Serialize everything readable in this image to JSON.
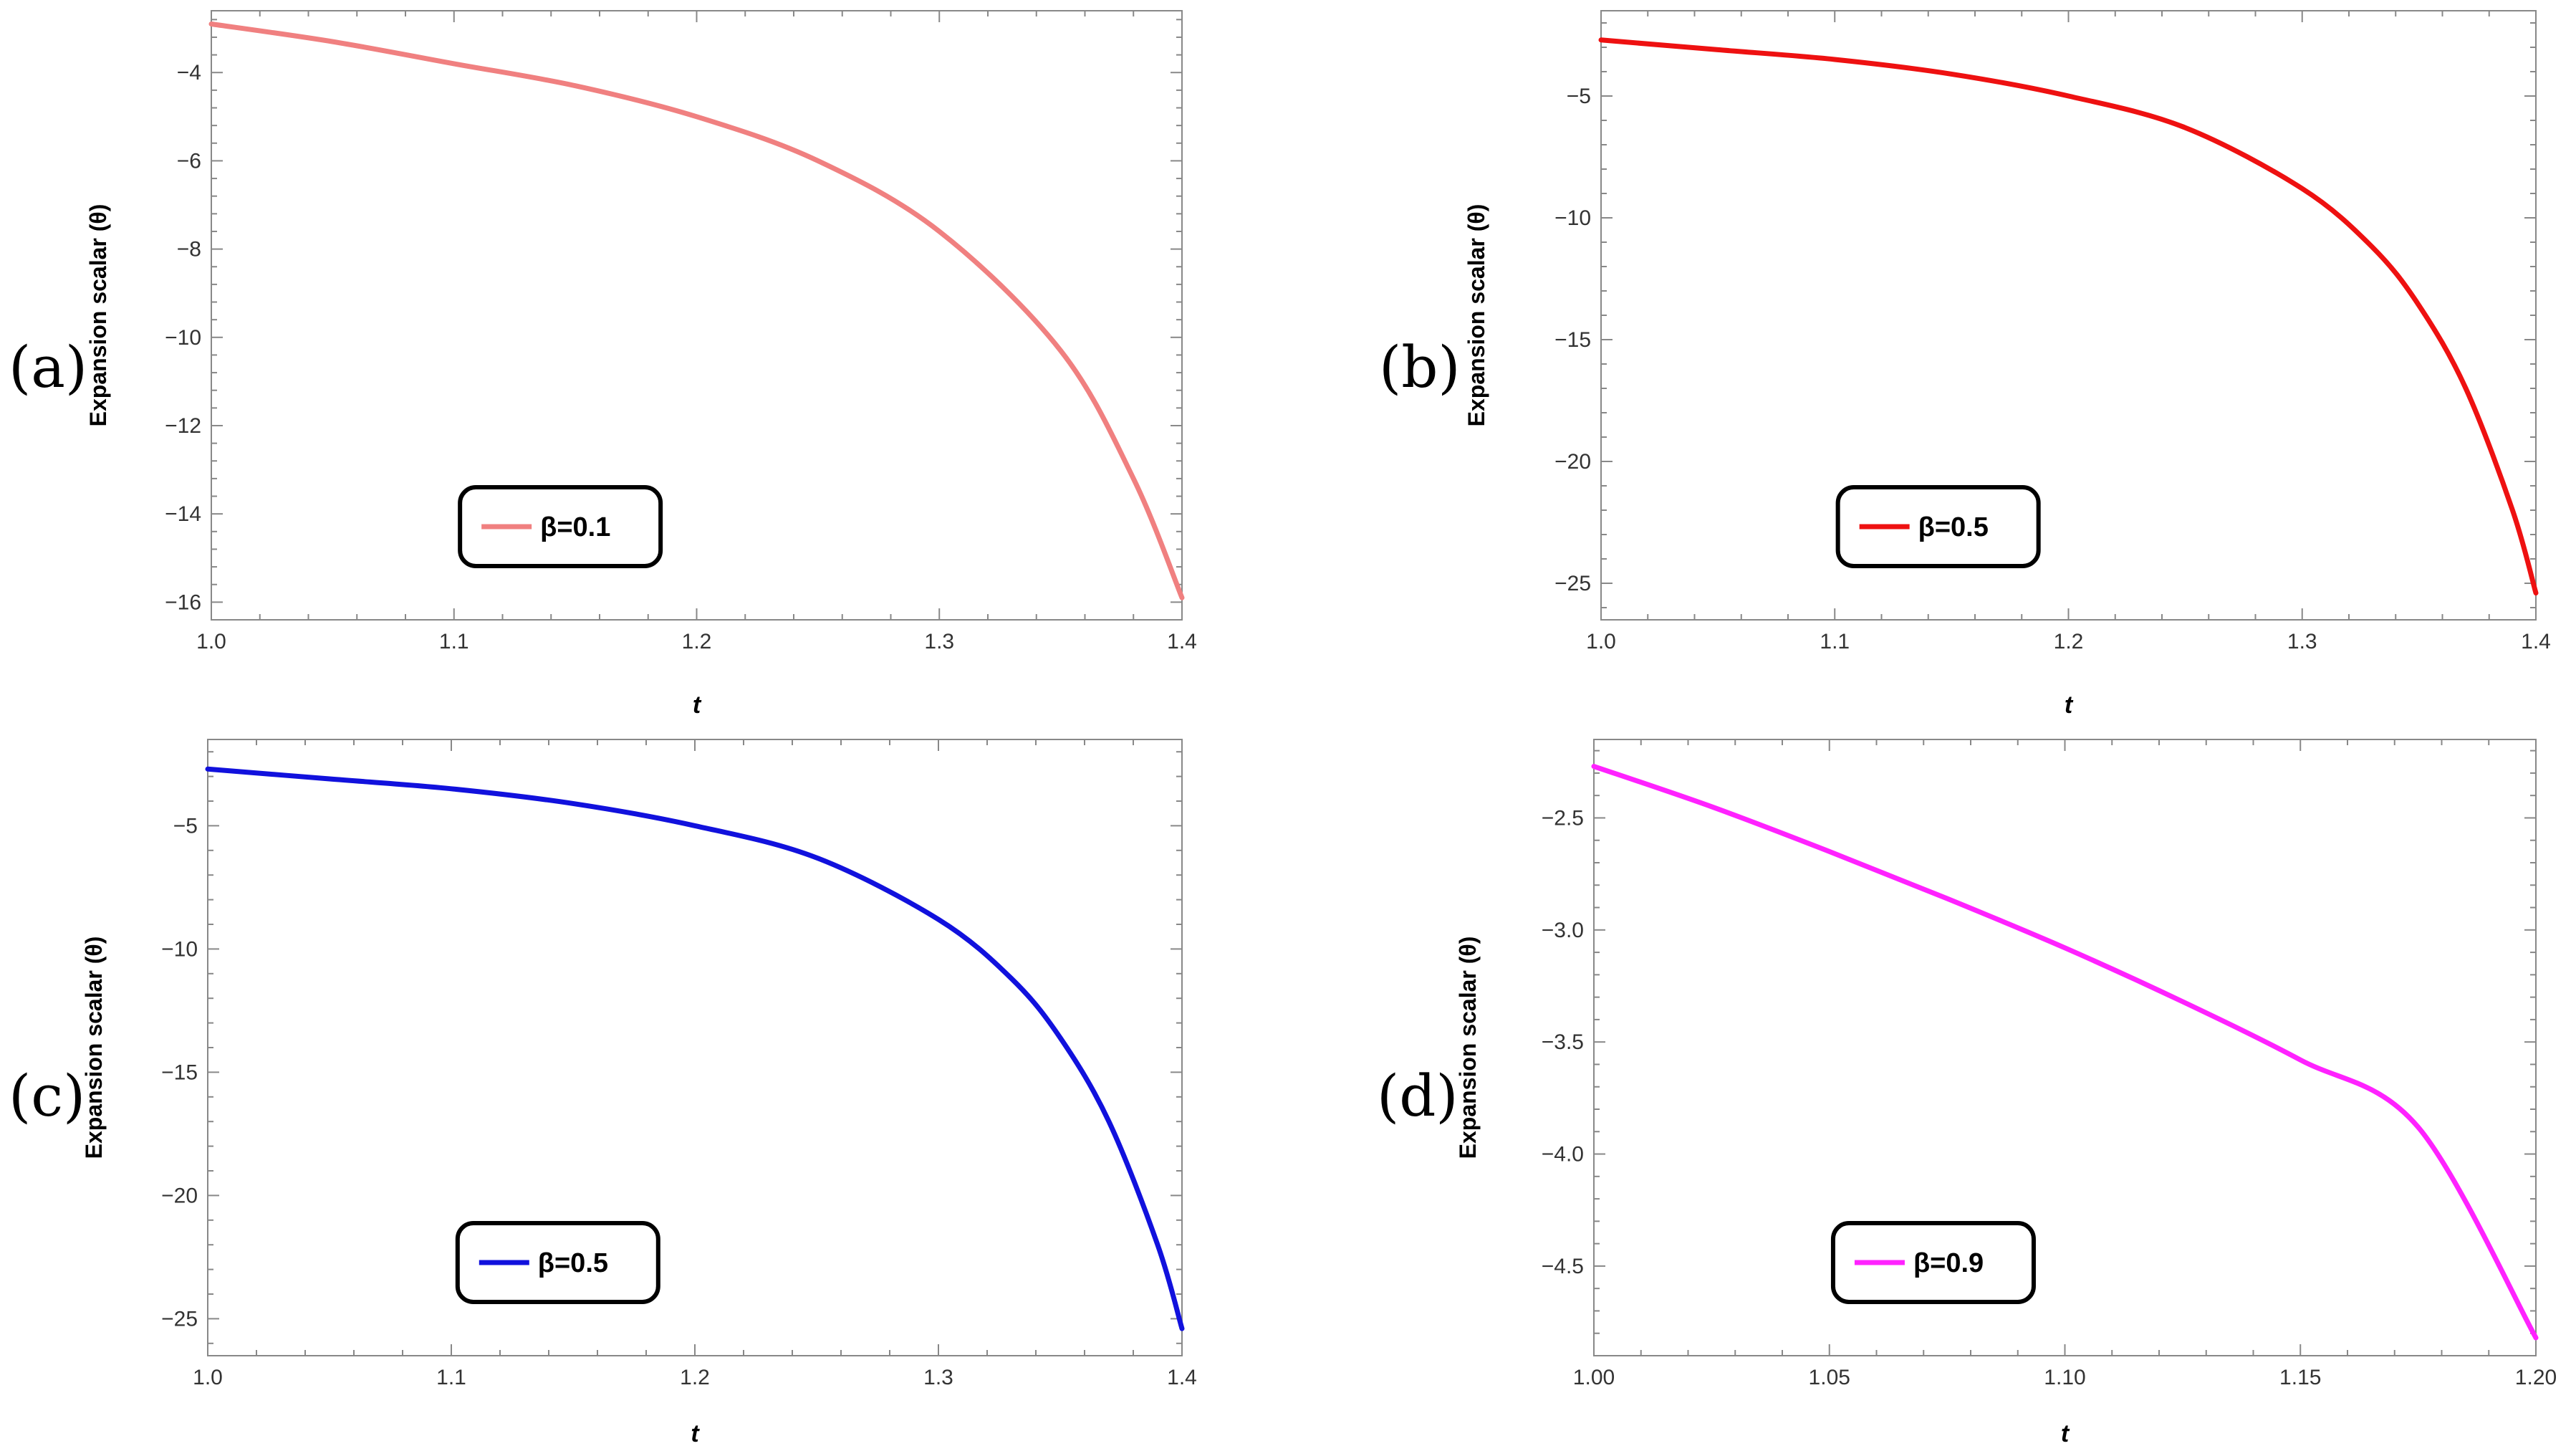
{
  "chart_data": [
    {
      "panel_label": "(a)",
      "type": "line",
      "xlabel": "t",
      "ylabel": "Expansion scalar (θ)",
      "xlim": [
        1.0,
        1.4
      ],
      "ylim": [
        -16.4,
        -2.6
      ],
      "xticks": [
        1.0,
        1.1,
        1.2,
        1.3,
        1.4
      ],
      "xtick_labels": [
        "1.0",
        "1.1",
        "1.2",
        "1.3",
        "1.4"
      ],
      "yticks": [
        -4,
        -6,
        -8,
        -10,
        -12,
        -14,
        -16
      ],
      "ytick_labels": [
        "-4",
        "-6",
        "-8",
        "-10",
        "-12",
        "-14",
        "-16"
      ],
      "legend_position": "bottom-center",
      "series": [
        {
          "name": "β=0.1",
          "color": "#f08080",
          "x": [
            1.0,
            1.05,
            1.1,
            1.15,
            1.2,
            1.25,
            1.3,
            1.35,
            1.38,
            1.4
          ],
          "y": [
            -2.9,
            -3.3,
            -3.8,
            -4.3,
            -5.0,
            -6.0,
            -7.6,
            -10.3,
            -13.2,
            -15.9
          ]
        }
      ]
    },
    {
      "panel_label": "(b)",
      "type": "line",
      "xlabel": "t",
      "ylabel": "Expansion scalar (θ)",
      "xlim": [
        1.0,
        1.4
      ],
      "ylim": [
        -26.5,
        -1.5
      ],
      "xticks": [
        1.0,
        1.1,
        1.2,
        1.3,
        1.4
      ],
      "xtick_labels": [
        "1.0",
        "1.1",
        "1.2",
        "1.3",
        "1.4"
      ],
      "yticks": [
        -5,
        -10,
        -15,
        -20,
        -25
      ],
      "ytick_labels": [
        "-5",
        "-10",
        "-15",
        "-20",
        "-25"
      ],
      "legend_position": "bottom-center",
      "series": [
        {
          "name": "β=0.5",
          "color": "#ee1111",
          "x": [
            1.0,
            1.05,
            1.1,
            1.15,
            1.2,
            1.25,
            1.3,
            1.33,
            1.35,
            1.37,
            1.39,
            1.4
          ],
          "y": [
            -2.7,
            -3.1,
            -3.5,
            -4.1,
            -5.0,
            -6.3,
            -8.8,
            -11.2,
            -13.6,
            -17.0,
            -22.0,
            -25.4
          ]
        }
      ]
    },
    {
      "panel_label": "(c)",
      "type": "line",
      "xlabel": "t",
      "ylabel": "Expansion scalar (θ)",
      "xlim": [
        1.0,
        1.4
      ],
      "ylim": [
        -26.5,
        -1.5
      ],
      "xticks": [
        1.0,
        1.1,
        1.2,
        1.3,
        1.4
      ],
      "xtick_labels": [
        "1.0",
        "1.1",
        "1.2",
        "1.3",
        "1.4"
      ],
      "yticks": [
        -5,
        -10,
        -15,
        -20,
        -25
      ],
      "ytick_labels": [
        "-5",
        "-10",
        "-15",
        "-20",
        "-25"
      ],
      "legend_position": "bottom-center",
      "series": [
        {
          "name": "β=0.5",
          "color": "#1111dd",
          "x": [
            1.0,
            1.05,
            1.1,
            1.15,
            1.2,
            1.25,
            1.3,
            1.33,
            1.35,
            1.37,
            1.39,
            1.4
          ],
          "y": [
            -2.7,
            -3.1,
            -3.5,
            -4.1,
            -5.0,
            -6.3,
            -8.8,
            -11.2,
            -13.6,
            -17.0,
            -22.0,
            -25.4
          ]
        }
      ]
    },
    {
      "panel_label": "(d)",
      "type": "line",
      "xlabel": "t",
      "ylabel": "Expansion scalar (θ)",
      "xlim": [
        1.0,
        1.2
      ],
      "ylim": [
        -4.9,
        -2.15
      ],
      "xticks": [
        1.0,
        1.05,
        1.1,
        1.15,
        1.2
      ],
      "xtick_labels": [
        "1.00",
        "1.05",
        "1.10",
        "1.15",
        "1.20"
      ],
      "yticks": [
        -2.5,
        -3.0,
        -3.5,
        -4.0,
        -4.5
      ],
      "ytick_labels": [
        "-2.5",
        "-3.0",
        "-3.5",
        "-4.0",
        "-4.5"
      ],
      "legend_position": "bottom-center",
      "series": [
        {
          "name": "β=0.9",
          "color": "#ff22ff",
          "x": [
            1.0,
            1.025,
            1.05,
            1.075,
            1.1,
            1.125,
            1.15,
            1.175,
            1.2
          ],
          "y": [
            -2.27,
            -2.45,
            -2.65,
            -2.86,
            -3.08,
            -3.32,
            -3.58,
            -3.88,
            -4.82
          ]
        }
      ]
    }
  ]
}
